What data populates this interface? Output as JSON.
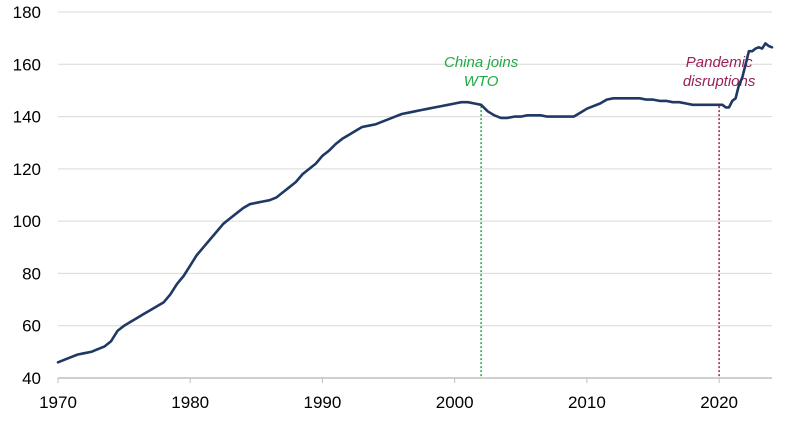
{
  "chart_data": {
    "type": "line",
    "title": "",
    "xlabel": "",
    "ylabel": "",
    "xlim": [
      1970,
      2024
    ],
    "ylim": [
      40,
      180
    ],
    "x_ticks": [
      1970,
      1980,
      1990,
      2000,
      2010,
      2020
    ],
    "y_ticks": [
      40,
      60,
      80,
      100,
      120,
      140,
      160,
      180
    ],
    "x_tick_labels": [
      "1970",
      "1980",
      "1990",
      "2000",
      "2010",
      "2020"
    ],
    "y_tick_labels": [
      "40",
      "60",
      "80",
      "100",
      "120",
      "140",
      "160",
      "180"
    ],
    "grid": "horizontal",
    "line_color": "#1f3864",
    "series": [
      {
        "x": [
          1970.0,
          1970.5,
          1971.0,
          1971.5,
          1972.0,
          1972.5,
          1973.0,
          1973.5,
          1974.0,
          1974.5,
          1975.0,
          1975.5,
          1976.0,
          1976.5,
          1977.0,
          1977.5,
          1978.0,
          1978.5,
          1979.0,
          1979.5,
          1980.0,
          1980.5,
          1981.0,
          1981.5,
          1982.0,
          1982.5,
          1983.0,
          1983.5,
          1984.0,
          1984.5,
          1985.0,
          1985.5,
          1986.0,
          1986.5,
          1987.0,
          1987.5,
          1988.0,
          1988.5,
          1989.0,
          1989.5,
          1990.0,
          1990.5,
          1991.0,
          1991.5,
          1992.0,
          1992.5,
          1993.0,
          1993.5,
          1994.0,
          1994.5,
          1995.0,
          1995.5,
          1996.0,
          1996.5,
          1997.0,
          1997.5,
          1998.0,
          1998.5,
          1999.0,
          1999.5,
          2000.0,
          2000.5,
          2001.0,
          2001.5,
          2002.0,
          2002.5,
          2003.0,
          2003.5,
          2004.0,
          2004.5,
          2005.0,
          2005.5,
          2006.0,
          2006.5,
          2007.0,
          2007.5,
          2008.0,
          2008.5,
          2009.0,
          2009.5,
          2010.0,
          2010.5,
          2011.0,
          2011.5,
          2012.0,
          2012.5,
          2013.0,
          2013.5,
          2014.0,
          2014.5,
          2015.0,
          2015.5,
          2016.0,
          2016.5,
          2017.0,
          2017.5,
          2018.0,
          2018.5,
          2019.0,
          2019.5,
          2020.0,
          2020.25,
          2020.5,
          2020.75,
          2021.0,
          2021.25,
          2021.5,
          2021.75,
          2022.0,
          2022.25,
          2022.5,
          2022.75,
          2023.0,
          2023.25,
          2023.5,
          2023.75,
          2024.0
        ],
        "y": [
          46,
          47,
          48,
          49,
          49.5,
          50,
          51,
          52,
          54,
          58,
          60,
          61.5,
          63,
          64.5,
          66,
          67.5,
          69,
          72,
          76,
          79,
          83,
          87,
          90,
          93,
          96,
          99,
          101,
          103,
          105,
          106.5,
          107,
          107.5,
          108,
          109,
          111,
          113,
          115,
          118,
          120,
          122,
          125,
          127,
          129.5,
          131.5,
          133,
          134.5,
          136,
          136.5,
          137,
          138,
          139,
          140,
          141,
          141.5,
          142,
          142.5,
          143,
          143.5,
          144,
          144.5,
          145,
          145.5,
          145.5,
          145,
          144.5,
          142,
          140.5,
          139.5,
          139.5,
          140,
          140,
          140.5,
          140.5,
          140.5,
          140,
          140,
          140,
          140,
          140,
          141.5,
          143,
          144,
          145,
          146.5,
          147,
          147,
          147,
          147,
          147,
          146.5,
          146.5,
          146,
          146,
          145.5,
          145.5,
          145,
          144.5,
          144.5,
          144.5,
          144.5,
          144.5,
          144.5,
          143.5,
          143.5,
          146,
          147,
          152,
          155,
          160,
          165,
          165,
          166,
          166.5,
          166,
          168,
          167,
          166.5
        ]
      }
    ],
    "annotations": [
      {
        "x": 2002,
        "color": "#22aa44",
        "lines": [
          "China joins",
          "WTO"
        ]
      },
      {
        "x": 2020,
        "color": "#992255",
        "lines": [
          "Pandemic",
          "disruptions"
        ]
      }
    ]
  }
}
